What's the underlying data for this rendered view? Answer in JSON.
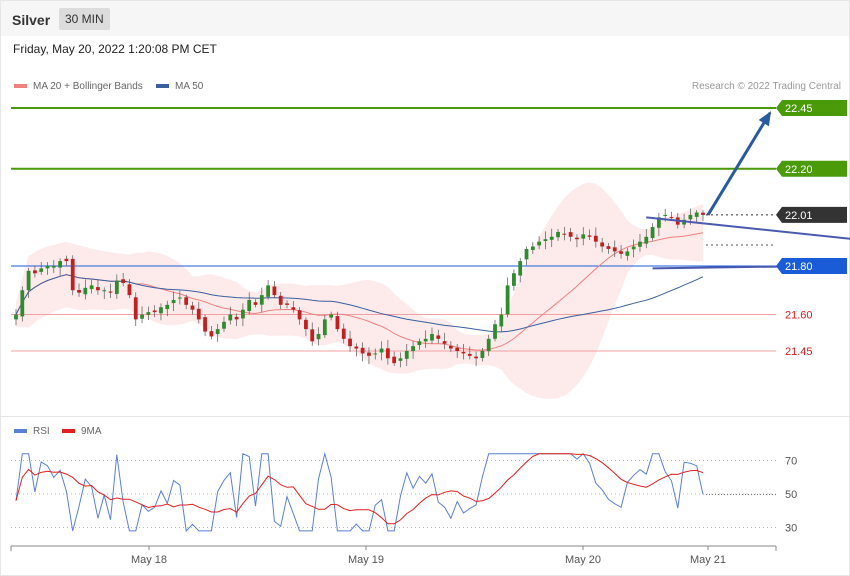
{
  "header": {
    "instrument": "Silver",
    "timeframe": "30 MIN"
  },
  "datetime": "Friday, May 20, 2022 1:20:08 PM CET",
  "legend": [
    {
      "label": "MA 20 + Bollinger Bands",
      "color": "#f08080"
    },
    {
      "label": "MA 50",
      "color": "#3a5f9e"
    }
  ],
  "copyright": "Research © 2022 Trading Central",
  "rsi_legend": [
    {
      "label": "RSI",
      "color": "#5b7fd6"
    },
    {
      "label": "9MA",
      "color": "#e02020"
    }
  ],
  "colors": {
    "resistance": "#4a9a0a",
    "support_main": "#1a5cd8",
    "support": "#e05050",
    "current": "#333333",
    "arrow": "#2a5a9e",
    "band_fill": "#fde8e8",
    "candle_up": "#2e8b2e",
    "candle_down": "#c02020"
  },
  "chart_data": [
    {
      "type": "candlestick",
      "ylim": [
        21.34,
        22.53
      ],
      "x_ticks": [
        "May 18",
        "May 19",
        "May 20",
        "May 21"
      ],
      "levels": [
        {
          "value": 22.45,
          "label": "22.45",
          "kind": "resistance"
        },
        {
          "value": 22.2,
          "label": "22.20",
          "kind": "resistance"
        },
        {
          "value": 22.01,
          "label": "22.01",
          "kind": "current"
        },
        {
          "value": 21.8,
          "label": "21.80",
          "kind": "support_main"
        },
        {
          "value": 21.6,
          "label": "21.60",
          "kind": "support"
        },
        {
          "value": 21.45,
          "label": "21.45",
          "kind": "support"
        }
      ],
      "close_path": [
        21.6,
        21.7,
        21.78,
        21.77,
        21.79,
        21.8,
        21.8,
        21.82,
        21.82,
        21.7,
        21.69,
        21.71,
        21.72,
        21.7,
        21.7,
        21.69,
        21.74,
        21.73,
        21.68,
        21.58,
        21.6,
        21.61,
        21.61,
        21.63,
        21.64,
        21.66,
        21.67,
        21.64,
        21.62,
        21.58,
        21.53,
        21.51,
        21.54,
        21.57,
        21.6,
        21.58,
        21.62,
        21.66,
        21.64,
        21.68,
        21.72,
        21.68,
        21.64,
        21.64,
        21.62,
        21.58,
        21.54,
        21.49,
        21.52,
        21.58,
        21.6,
        21.54,
        21.5,
        21.47,
        21.46,
        21.44,
        21.43,
        21.44,
        21.46,
        21.42,
        21.4,
        21.42,
        21.45,
        21.47,
        21.49,
        21.5,
        21.52,
        21.5,
        21.48,
        21.46,
        21.45,
        21.44,
        21.43,
        21.42,
        21.45,
        21.5,
        21.56,
        21.6,
        21.72,
        21.77,
        21.82,
        21.87,
        21.88,
        21.9,
        21.91,
        21.92,
        21.94,
        21.93,
        21.92,
        21.91,
        21.93,
        21.92,
        21.9,
        21.88,
        21.87,
        21.86,
        21.85,
        21.86,
        21.88,
        21.9,
        21.92,
        21.96,
        22.0,
        22.01,
        22.0,
        21.97,
        21.99,
        22.01,
        22.02,
        22.01
      ],
      "trend_lines": [
        {
          "from": [
            100,
            22.0
          ],
          "to": [
            133,
            21.91
          ]
        },
        {
          "from": [
            101,
            21.79
          ],
          "to": [
            128,
            21.8
          ]
        }
      ],
      "arrow_target": 22.43
    },
    {
      "type": "line",
      "name": "RSI",
      "levels": [
        70,
        50,
        30
      ],
      "ylim": [
        20,
        76
      ],
      "rsi_close_series_ref": "chart_data.0.close_path"
    }
  ]
}
